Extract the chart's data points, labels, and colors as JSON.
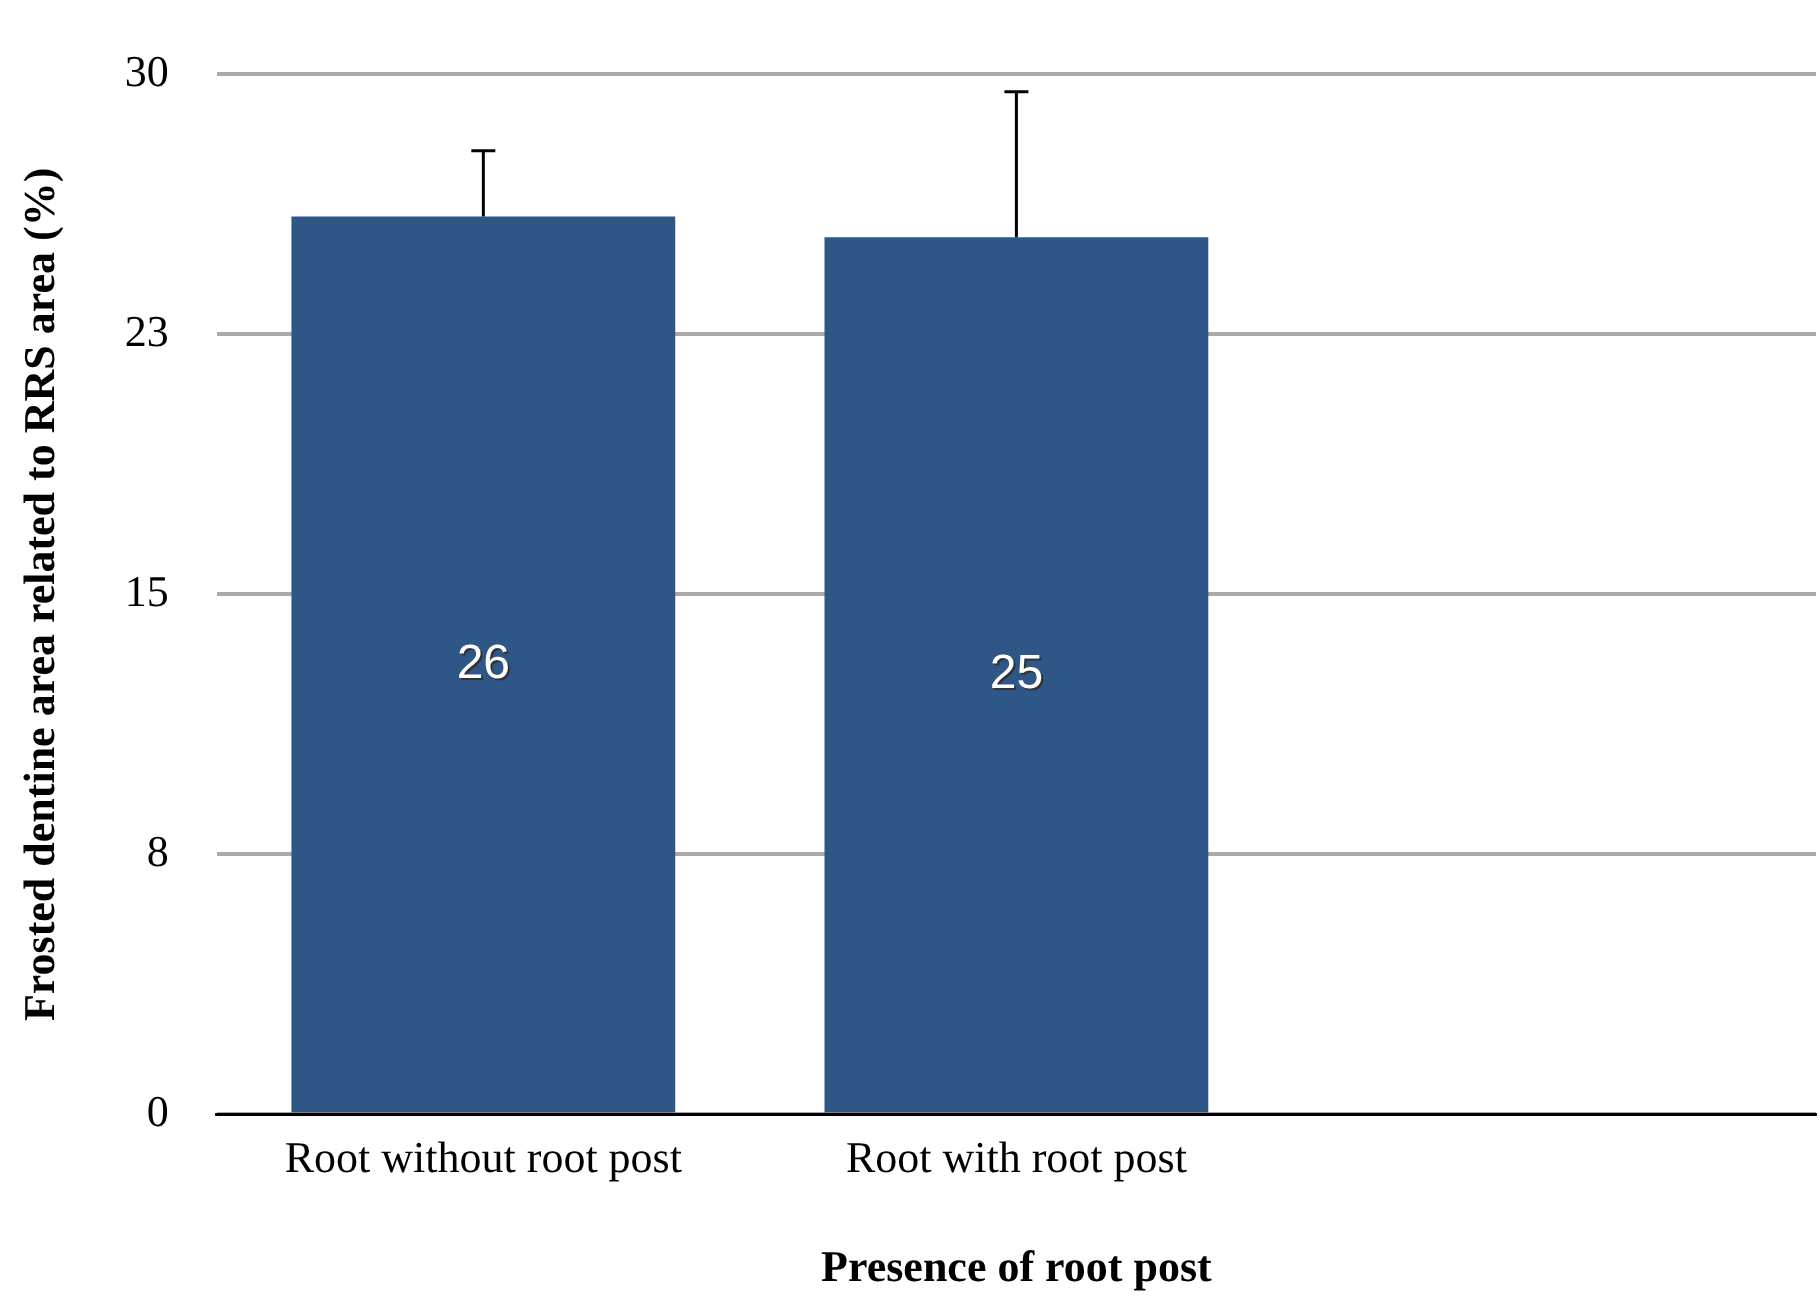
{
  "chart_data": {
    "type": "bar",
    "xlabel": "Presence of root post",
    "ylabel": "Frosted dentine area related to RRS area (%)",
    "categories": [
      "Root without root post",
      "Root with root post",
      null
    ],
    "values": [
      25.9,
      25.3,
      null
    ],
    "errors": [
      1.9,
      4.2,
      null
    ],
    "value_labels": [
      "26",
      "25",
      null
    ],
    "color": "#2e5788",
    "ylim": [
      0,
      30
    ],
    "yticks": [
      0,
      {
        "value": 7.5,
        "label": "8"
      },
      15,
      {
        "value": 22.5,
        "label": "23"
      },
      30
    ],
    "grid": "y",
    "legend": false
  }
}
